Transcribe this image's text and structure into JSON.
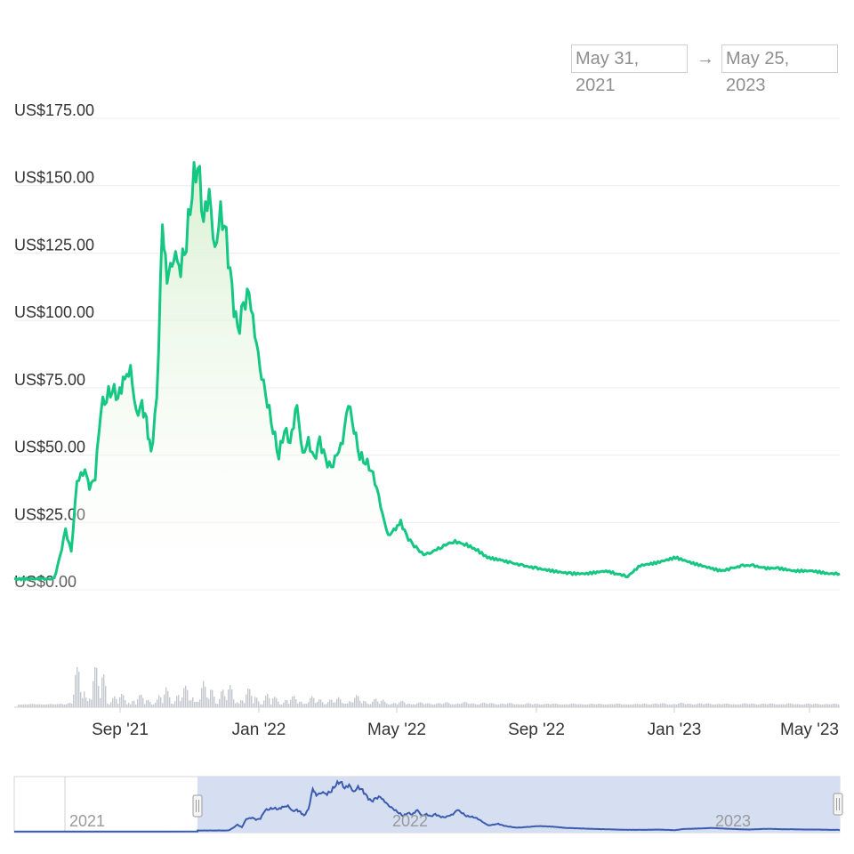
{
  "date_range": {
    "start": "May 31, 2021",
    "arrow": "→",
    "end": "May 25, 2023"
  },
  "colors": {
    "price_line": "#16c784",
    "area_top": "#d8f0cf",
    "volume": "#c4c8cf",
    "grid": "#ececec",
    "navigator_fill": "#d6def2",
    "navigator_line": "#3b5cad"
  },
  "chart_data": {
    "type": "area",
    "currency_prefix": "US$",
    "ylim": [
      0,
      175
    ],
    "y_ticks": [
      "US$175.00",
      "US$150.00",
      "US$125.00",
      "US$100.00",
      "US$75.00",
      "US$50.00",
      "US$25.00",
      "US$0.00"
    ],
    "x_ticks": [
      "Sep '21",
      "Jan '22",
      "May '22",
      "Sep '22",
      "Jan '23",
      "May '23"
    ],
    "navigator_labels": [
      "2021",
      "2022",
      "2023"
    ],
    "grid": true,
    "series": [
      {
        "x": [
          "2021-05-31",
          "2021-06-15",
          "2021-06-25",
          "2021-07-05",
          "2021-07-10",
          "2021-07-15",
          "2021-07-20",
          "2021-07-25",
          "2021-08-01",
          "2021-08-05",
          "2021-08-10",
          "2021-08-15",
          "2021-08-20",
          "2021-08-25",
          "2021-08-30",
          "2021-09-05",
          "2021-09-10",
          "2021-09-15",
          "2021-09-20",
          "2021-09-24",
          "2021-09-28",
          "2021-10-03",
          "2021-10-08",
          "2021-10-12",
          "2021-10-18",
          "2021-10-24",
          "2021-10-29",
          "2021-11-03",
          "2021-11-08",
          "2021-11-13",
          "2021-11-18",
          "2021-11-23",
          "2021-11-28",
          "2021-12-03",
          "2021-12-08",
          "2021-12-13",
          "2021-12-18",
          "2021-12-23",
          "2021-12-28",
          "2022-01-03",
          "2022-01-08",
          "2022-01-13",
          "2022-01-18",
          "2022-01-23",
          "2022-01-28",
          "2022-02-03",
          "2022-02-08",
          "2022-02-13",
          "2022-02-18",
          "2022-02-23",
          "2022-02-28",
          "2022-03-05",
          "2022-03-10",
          "2022-03-15",
          "2022-03-20",
          "2022-03-25",
          "2022-03-30",
          "2022-04-04",
          "2022-04-09",
          "2022-04-14",
          "2022-04-19",
          "2022-04-24",
          "2022-04-29",
          "2022-05-05",
          "2022-05-10",
          "2022-05-15",
          "2022-05-20",
          "2022-05-25",
          "2022-06-01",
          "2022-06-10",
          "2022-06-20",
          "2022-06-30",
          "2022-07-10",
          "2022-07-20",
          "2022-08-01",
          "2022-08-10",
          "2022-08-20",
          "2022-09-01",
          "2022-09-15",
          "2022-10-01",
          "2022-10-15",
          "2022-11-01",
          "2022-11-10",
          "2022-11-20",
          "2022-12-01",
          "2022-12-15",
          "2023-01-01",
          "2023-01-15",
          "2023-02-01",
          "2023-02-10",
          "2023-02-20",
          "2023-03-01",
          "2023-03-10",
          "2023-03-20",
          "2023-04-01",
          "2023-04-15",
          "2023-05-01",
          "2023-05-15",
          "2023-05-25"
        ],
        "y": [
          4,
          4,
          4,
          4,
          12,
          22,
          14,
          40,
          45,
          38,
          42,
          68,
          72,
          75,
          72,
          78,
          82,
          65,
          68,
          62,
          50,
          70,
          135,
          115,
          125,
          120,
          130,
          150,
          160,
          138,
          148,
          125,
          140,
          130,
          110,
          95,
          105,
          110,
          95,
          80,
          70,
          60,
          50,
          60,
          55,
          68,
          50,
          55,
          48,
          55,
          48,
          45,
          50,
          55,
          70,
          60,
          50,
          48,
          45,
          38,
          28,
          20,
          22,
          25,
          20,
          17,
          15,
          13,
          14,
          16,
          18,
          17,
          15,
          12,
          11,
          10,
          9,
          8,
          7,
          6,
          6,
          7,
          6,
          5,
          9,
          10,
          12,
          10,
          8,
          7,
          8,
          9,
          9,
          8,
          8,
          7,
          7,
          6,
          6
        ]
      }
    ]
  }
}
